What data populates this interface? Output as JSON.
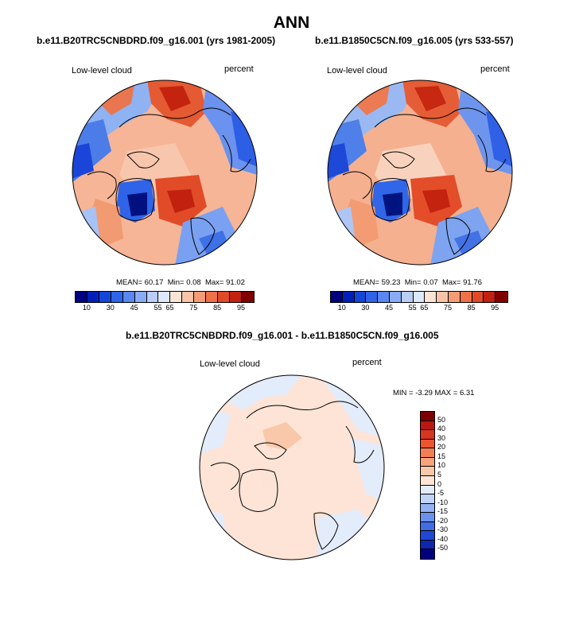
{
  "figure_title": "ANN",
  "colors": {
    "levels_abs": [
      "#00007f",
      "#0020b8",
      "#1446d8",
      "#2f64e8",
      "#5a88f0",
      "#8aacf4",
      "#b9cdf7",
      "#dde8fb",
      "#fbe4d6",
      "#f8c3a6",
      "#f49c76",
      "#ee7148",
      "#e04a26",
      "#c1210e",
      "#7f0000"
    ],
    "levels_diff": [
      "#7f0000",
      "#b81810",
      "#d63520",
      "#ec5530",
      "#f47e52",
      "#f7a47c",
      "#f9c8aa",
      "#fde4d6",
      "#e3ecfb",
      "#c1d3f7",
      "#92b2f3",
      "#6a91ee",
      "#426be6",
      "#1f48d6",
      "#0d27b0",
      "#00007f"
    ],
    "coast": "#000000",
    "ocean_fill": "#dfe9fb"
  },
  "chart_data": [
    {
      "type": "heatmap",
      "projection": "north polar stereographic",
      "title": "b.e11.B20TRC5CNBDRD.f09_g16.001 (yrs 1981-2005)",
      "left_label": "Low-level cloud",
      "right_label": "percent",
      "stats": {
        "mean": "60.17",
        "min": "0.08",
        "max": "91.02"
      },
      "colorbar_ticks": [
        "10",
        "30",
        "45",
        "55",
        "65",
        "75",
        "85",
        "95"
      ]
    },
    {
      "type": "heatmap",
      "projection": "north polar stereographic",
      "title": "b.e11.B1850C5CN.f09_g16.005 (yrs 533-557)",
      "left_label": "Low-level cloud",
      "right_label": "percent",
      "stats": {
        "mean": "59.23",
        "min": "0.07",
        "max": "91.76"
      },
      "colorbar_ticks": [
        "10",
        "30",
        "45",
        "55",
        "65",
        "75",
        "85",
        "95"
      ]
    },
    {
      "type": "heatmap",
      "projection": "north polar stereographic",
      "title": "b.e11.B20TRC5CNBDRD.f09_g16.001 - b.e11.B1850C5CN.f09_g16.005",
      "left_label": "Low-level cloud",
      "right_label": "percent",
      "min_max_text": "MIN =  -3.29 MAX =   6.31",
      "colorbar_ticks": [
        "50",
        "40",
        "30",
        "20",
        "15",
        "10",
        "5",
        "0",
        "-5",
        "-10",
        "-15",
        "-20",
        "-30",
        "-40",
        "-50"
      ]
    }
  ],
  "labels": {
    "mean": "MEAN=",
    "min": "Min=",
    "max": "Max="
  }
}
